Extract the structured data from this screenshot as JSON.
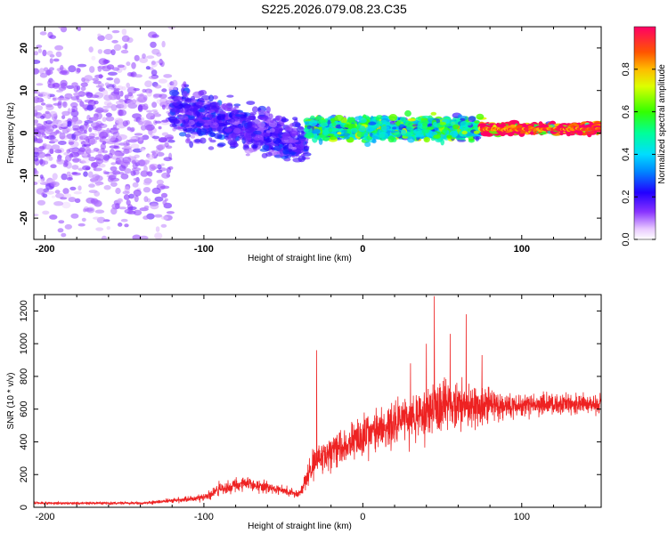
{
  "title": "S225.2026.079.08.23.C35",
  "colors": {
    "snr_line": "#ee2222",
    "axis": "#000000",
    "background": "#ffffff"
  },
  "chart_data": [
    {
      "type": "heatmap",
      "xlabel": "Height of straight line (km)",
      "ylabel": "Frequency (Hz)",
      "xlim": [
        -207,
        150
      ],
      "ylim": [
        -25,
        25
      ],
      "x_ticks": [
        -200,
        -100,
        0,
        100
      ],
      "x_tick_labels": [
        "-200",
        "-100",
        "0",
        "100"
      ],
      "y_ticks": [
        -20,
        -10,
        0,
        10,
        20
      ],
      "y_tick_labels": [
        "-20",
        "-10",
        "0",
        "10",
        "20"
      ],
      "colorbar": {
        "label": "Normalized spectral amplitude",
        "range": [
          0,
          1
        ],
        "ticks": [
          0.0,
          0.2,
          0.4,
          0.6,
          0.8
        ],
        "tick_labels": [
          "0.0",
          "0.2",
          "0.4",
          "0.6",
          "0.8"
        ]
      },
      "regions": [
        {
          "x_range": [
            -207,
            -120
          ],
          "freq_center": 0,
          "freq_spread": 24,
          "amplitude": 0.1,
          "description": "scattered weak noise"
        },
        {
          "x_range": [
            -120,
            -35
          ],
          "freq_center": 3,
          "freq_spread": 9,
          "amplitude": 0.18,
          "description": "dispersed band trending downward"
        },
        {
          "x_range": [
            -35,
            75
          ],
          "freq_center": 1,
          "freq_spread": 2.5,
          "amplitude": 0.45,
          "description": "concentrated band"
        },
        {
          "x_range": [
            75,
            150
          ],
          "freq_center": 1,
          "freq_spread": 1,
          "amplitude": 0.9,
          "description": "strong narrow line near 1 Hz"
        }
      ]
    },
    {
      "type": "line",
      "xlabel": "Height of straight line (km)",
      "ylabel": "SNR (10 * v/v)",
      "xlim": [
        -207,
        150
      ],
      "ylim": [
        0,
        1300
      ],
      "x_ticks": [
        -200,
        -100,
        0,
        100
      ],
      "x_tick_labels": [
        "-200",
        "-100",
        "0",
        "100"
      ],
      "y_ticks": [
        0,
        200,
        400,
        600,
        800,
        1000,
        1200
      ],
      "y_tick_labels": [
        "0",
        "200",
        "400",
        "600",
        "800",
        "1000",
        "1200"
      ],
      "envelope": [
        {
          "x": -207,
          "mean": 25,
          "spread": 15
        },
        {
          "x": -140,
          "mean": 25,
          "spread": 15
        },
        {
          "x": -120,
          "mean": 40,
          "spread": 25
        },
        {
          "x": -100,
          "mean": 60,
          "spread": 40
        },
        {
          "x": -90,
          "mean": 110,
          "spread": 70
        },
        {
          "x": -75,
          "mean": 150,
          "spread": 80
        },
        {
          "x": -55,
          "mean": 110,
          "spread": 60
        },
        {
          "x": -40,
          "mean": 80,
          "spread": 40
        },
        {
          "x": -32,
          "mean": 250,
          "spread": 200
        },
        {
          "x": -28,
          "mean": 300,
          "spread": 180
        },
        {
          "x": -10,
          "mean": 380,
          "spread": 200
        },
        {
          "x": 10,
          "mean": 470,
          "spread": 220
        },
        {
          "x": 30,
          "mean": 550,
          "spread": 260
        },
        {
          "x": 50,
          "mean": 620,
          "spread": 300
        },
        {
          "x": 70,
          "mean": 620,
          "spread": 260
        },
        {
          "x": 90,
          "mean": 620,
          "spread": 130
        },
        {
          "x": 150,
          "mean": 630,
          "spread": 110
        }
      ],
      "peaks": [
        {
          "x": -29,
          "y": 960
        },
        {
          "x": 45,
          "y": 1290
        },
        {
          "x": 65,
          "y": 1180
        },
        {
          "x": 55,
          "y": 1060
        },
        {
          "x": 40,
          "y": 1000
        },
        {
          "x": 75,
          "y": 930
        },
        {
          "x": 30,
          "y": 880
        }
      ]
    }
  ]
}
